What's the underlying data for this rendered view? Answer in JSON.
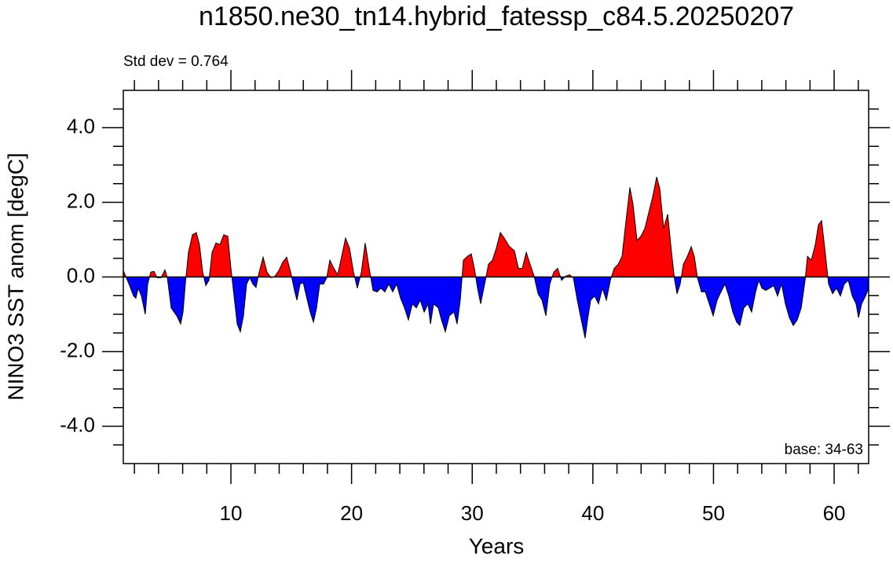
{
  "chart_data": {
    "type": "area",
    "title": "n1850.ne30_tn14.hybrid_fatessp_c84.5.20250207",
    "subtitle": "Std dev = 0.764",
    "annotation": "base: 34-63",
    "x_label": "Years",
    "y_label": "NINO3 SST anom [degC]",
    "xlim": [
      1.08,
      62.86
    ],
    "ylim": [
      -5,
      5
    ],
    "xticks": [
      10,
      20,
      30,
      40,
      50,
      60
    ],
    "xminorticks": [
      2,
      4,
      6,
      8,
      12,
      14,
      16,
      18,
      22,
      24,
      26,
      28,
      32,
      34,
      36,
      38,
      42,
      44,
      46,
      48,
      52,
      54,
      56,
      58,
      62
    ],
    "yticks": [
      {
        "value": -4,
        "label": "-4.0"
      },
      {
        "value": -2,
        "label": "-2.0"
      },
      {
        "value": 0,
        "label": "0.0"
      },
      {
        "value": 2,
        "label": "2.0"
      },
      {
        "value": 4,
        "label": "4.0"
      }
    ],
    "yminorticks": [
      -4.5,
      -3.5,
      -3,
      -2.5,
      -1.5,
      -1,
      -0.5,
      0.5,
      1,
      1.5,
      2.5,
      3,
      3.5,
      4.5
    ],
    "baseline": 0,
    "above_color": "#ff0000",
    "below_color": "#0000ff",
    "line_color": "#000000",
    "x": [
      1.08,
      1.28,
      1.6,
      1.93,
      2.12,
      2.32,
      2.58,
      2.9,
      3.1,
      3.36,
      3.62,
      3.88,
      4.21,
      4.53,
      4.73,
      5.05,
      5.51,
      5.83,
      6.03,
      6.22,
      6.48,
      6.81,
      7.13,
      7.39,
      7.66,
      7.92,
      8.18,
      8.44,
      8.76,
      9.09,
      9.41,
      9.74,
      10.0,
      10.26,
      10.52,
      10.78,
      11.04,
      11.3,
      11.56,
      11.82,
      12.08,
      12.34,
      12.67,
      12.99,
      13.32,
      13.65,
      13.97,
      14.3,
      14.62,
      14.95,
      15.27,
      15.47,
      15.73,
      15.99,
      16.25,
      16.57,
      16.84,
      17.1,
      17.36,
      17.68,
      17.94,
      18.2,
      18.53,
      18.85,
      19.18,
      19.5,
      19.83,
      20.16,
      20.48,
      20.81,
      21.13,
      21.46,
      21.78,
      22.11,
      22.43,
      22.76,
      23.09,
      23.41,
      23.74,
      24.06,
      24.39,
      24.71,
      25.04,
      25.37,
      25.69,
      26.02,
      26.34,
      26.54,
      26.8,
      27.19,
      27.45,
      27.77,
      28.1,
      28.49,
      28.75,
      29.01,
      29.27,
      29.6,
      29.92,
      30.18,
      30.44,
      30.7,
      31.03,
      31.35,
      31.68,
      32.0,
      32.33,
      32.66,
      33.05,
      33.5,
      33.83,
      34.15,
      34.48,
      34.8,
      35.13,
      35.46,
      35.78,
      36.11,
      36.43,
      36.76,
      37.08,
      37.41,
      37.73,
      38.06,
      38.38,
      38.71,
      39.04,
      39.36,
      39.56,
      39.82,
      40.14,
      40.47,
      40.79,
      41.12,
      41.45,
      41.77,
      42.1,
      42.42,
      42.75,
      43.07,
      43.33,
      43.66,
      43.98,
      44.31,
      44.63,
      44.96,
      45.29,
      45.55,
      45.87,
      46.2,
      46.52,
      46.78,
      46.98,
      47.24,
      47.5,
      47.83,
      48.15,
      48.41,
      48.67,
      49.0,
      49.32,
      49.65,
      49.97,
      50.3,
      50.62,
      50.95,
      51.27,
      51.6,
      51.92,
      52.18,
      52.51,
      52.84,
      53.16,
      53.49,
      53.75,
      54.01,
      54.34,
      54.66,
      54.99,
      55.31,
      55.64,
      55.96,
      56.29,
      56.61,
      56.94,
      57.27,
      57.59,
      57.79,
      58.11,
      58.44,
      58.7,
      58.96,
      59.22,
      59.54,
      59.87,
      60.19,
      60.52,
      60.84,
      61.17,
      61.5,
      61.82,
      62.02,
      62.28,
      62.6,
      62.86
    ],
    "values": [
      0.17,
      0.02,
      -0.23,
      -0.51,
      -0.57,
      -0.3,
      -0.51,
      -1.0,
      -0.19,
      0.13,
      0.15,
      -0.02,
      -0.02,
      0.19,
      -0.02,
      -0.83,
      -1.04,
      -1.26,
      -0.94,
      -0.19,
      0.66,
      1.13,
      1.19,
      0.87,
      0.13,
      -0.23,
      -0.09,
      0.66,
      0.91,
      0.87,
      1.13,
      1.09,
      0.23,
      -0.51,
      -1.26,
      -1.47,
      -1.04,
      -0.19,
      -0.02,
      -0.19,
      -0.28,
      0.13,
      0.53,
      0.13,
      -0.02,
      0.02,
      0.17,
      0.4,
      0.53,
      0.13,
      -0.36,
      -0.62,
      -0.19,
      -0.15,
      -0.51,
      -0.94,
      -1.21,
      -0.83,
      -0.19,
      -0.19,
      -0.02,
      0.45,
      0.23,
      0.06,
      0.55,
      1.04,
      0.77,
      0.13,
      -0.3,
      0.13,
      0.91,
      0.23,
      -0.36,
      -0.4,
      -0.3,
      -0.4,
      -0.19,
      -0.4,
      -0.19,
      -0.57,
      -0.83,
      -1.15,
      -0.72,
      -0.83,
      -0.62,
      -0.94,
      -0.72,
      -1.26,
      -0.72,
      -0.83,
      -1.15,
      -1.47,
      -1.04,
      -0.94,
      -1.26,
      -0.62,
      0.45,
      0.55,
      0.62,
      0.23,
      -0.3,
      -0.72,
      -0.19,
      0.34,
      0.45,
      0.77,
      1.19,
      1.04,
      0.83,
      0.7,
      0.23,
      0.23,
      0.66,
      0.34,
      0.02,
      -0.45,
      -0.62,
      -1.04,
      -0.19,
      0.13,
      0.23,
      -0.09,
      0.02,
      0.06,
      -0.02,
      -0.62,
      -1.15,
      -1.64,
      -1.15,
      -0.62,
      -0.51,
      -0.72,
      -0.3,
      -0.62,
      -0.09,
      0.23,
      0.34,
      0.55,
      1.51,
      2.4,
      1.94,
      0.98,
      1.09,
      1.3,
      1.72,
      2.15,
      2.68,
      2.36,
      1.3,
      1.68,
      0.66,
      -0.09,
      -0.45,
      -0.19,
      0.34,
      0.55,
      0.81,
      0.55,
      -0.02,
      -0.4,
      -0.4,
      -0.72,
      -1.04,
      -0.62,
      -0.4,
      -0.19,
      -0.51,
      -0.94,
      -1.21,
      -1.3,
      -0.83,
      -0.72,
      -0.94,
      -0.4,
      -0.09,
      -0.3,
      -0.36,
      -0.3,
      -0.23,
      -0.51,
      -0.19,
      -0.72,
      -1.09,
      -1.3,
      -1.15,
      -0.83,
      -0.09,
      0.55,
      0.45,
      0.87,
      1.4,
      1.51,
      0.77,
      -0.19,
      -0.45,
      -0.3,
      -0.51,
      -0.19,
      -0.09,
      -0.51,
      -0.72,
      -1.09,
      -0.72,
      -0.51,
      -0.3
    ]
  }
}
